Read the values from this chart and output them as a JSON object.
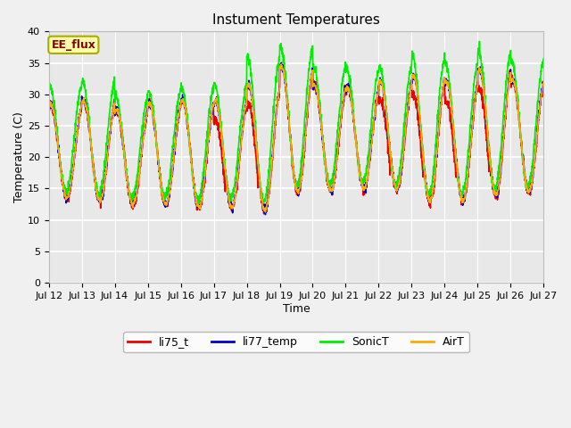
{
  "title": "Instument Temperatures",
  "xlabel": "Time",
  "ylabel": "Temperature (C)",
  "ylim": [
    0,
    40
  ],
  "yticks": [
    0,
    5,
    10,
    15,
    20,
    25,
    30,
    35,
    40
  ],
  "xtick_labels": [
    "Jul 12",
    "Jul 13",
    "Jul 14",
    "Jul 15",
    "Jul 16",
    "Jul 17",
    "Jul 18",
    "Jul 19",
    "Jul 20",
    "Jul 21",
    "Jul 22",
    "Jul 23",
    "Jul 24",
    "Jul 25",
    "Jul 26",
    "Jul 27"
  ],
  "colors": {
    "li75_t": "#ee0000",
    "li77_temp": "#0000cc",
    "SonicT": "#00ee00",
    "AirT": "#ffaa00"
  },
  "annotation_text": "EE_flux",
  "annotation_color": "#880000",
  "annotation_bg": "#ffffaa",
  "annotation_edge": "#aaaa00",
  "bg_color": "#e8e8e8",
  "fig_bg": "#f0f0f0",
  "n_days": 15,
  "points_per_day": 144,
  "title_fontsize": 11,
  "axis_fontsize": 9,
  "tick_fontsize": 8,
  "linewidth": 1.2
}
